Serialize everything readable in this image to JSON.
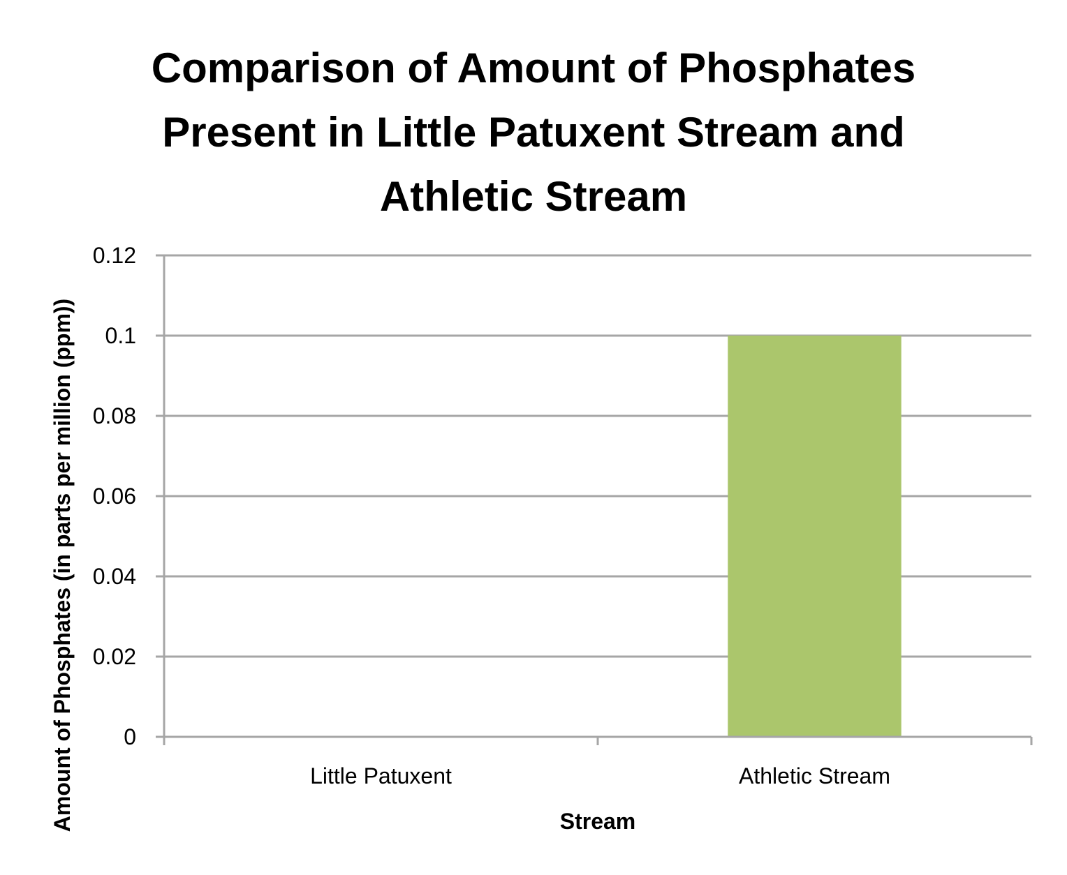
{
  "chart_data": {
    "type": "bar",
    "title_lines": [
      "Comparison of Amount of Phosphates",
      "Present in Little Patuxent Stream and",
      "Athletic Stream"
    ],
    "xlabel": "Stream",
    "ylabel": "Amount of Phosphates (in parts per million (ppm))",
    "categories": [
      "Little Patuxent",
      "Athletic Stream"
    ],
    "values": [
      0,
      0.1
    ],
    "ylim": [
      0,
      0.12
    ],
    "yticks": [
      "0",
      "0.02",
      "0.04",
      "0.06",
      "0.08",
      "0.1",
      "0.12"
    ],
    "grid": true,
    "legend": "none",
    "colors": {
      "bar": "#abc66c",
      "grid": "#a6a6a6",
      "axis": "#a6a6a6"
    }
  }
}
